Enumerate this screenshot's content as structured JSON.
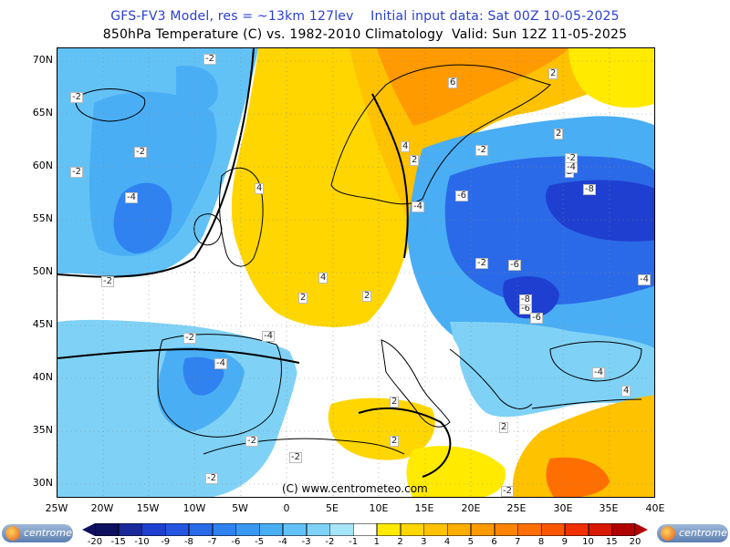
{
  "header": {
    "line1": "GFS-FV3 Model, res = ~13km 127lev    Initial input data: Sat 00Z 10-05-2025",
    "line2": "850hPa Temperature (C) vs. 1982-2010 Climatology  Valid: Sun 12Z 11-05-2025"
  },
  "axes": {
    "lat_labels": [
      "70N",
      "65N",
      "60N",
      "55N",
      "50N",
      "45N",
      "40N",
      "35N",
      "30N"
    ],
    "lon_labels": [
      "25W",
      "20W",
      "15W",
      "10W",
      "5W",
      "0",
      "5E",
      "10E",
      "15E",
      "20E",
      "25E",
      "30E",
      "35E",
      "40E"
    ]
  },
  "contour_labels": [
    "-2",
    "-2",
    "-2",
    "-2",
    "-4",
    "-4",
    "-2",
    "-2",
    "-2",
    "-4",
    "-2",
    "-2",
    "-2",
    "4",
    "2",
    "2",
    "4",
    "4",
    "2",
    "2",
    "2",
    "2",
    "2",
    "-4",
    "-6",
    "-2",
    "-2",
    "-6",
    "-6",
    "-6",
    "-8",
    "-8",
    "-4",
    "-4",
    "-4",
    "4",
    "6",
    "2",
    "2",
    "-2"
  ],
  "copyright": "(C) www.centrometeo.com",
  "legend": {
    "labels": [
      "-20",
      "-15",
      "-10",
      "-9",
      "-8",
      "-7",
      "-6",
      "-5",
      "-4",
      "-3",
      "-2",
      "-1",
      "1",
      "2",
      "3",
      "4",
      "5",
      "6",
      "7",
      "8",
      "9",
      "10",
      "15",
      "20"
    ],
    "colors": [
      "#101060",
      "#1a2a9a",
      "#1f3fd0",
      "#2656e0",
      "#2a6ae8",
      "#2f82ef",
      "#3a98f3",
      "#4aaef5",
      "#62c2f6",
      "#7fd2f6",
      "#a6e4f8",
      "#ffffff",
      "#ffea00",
      "#ffd600",
      "#ffc200",
      "#ffae00",
      "#ff9a00",
      "#ff8400",
      "#ff6e00",
      "#ff5500",
      "#f03000",
      "#d81a00",
      "#b00000"
    ],
    "logo_text": "centrometeo"
  }
}
